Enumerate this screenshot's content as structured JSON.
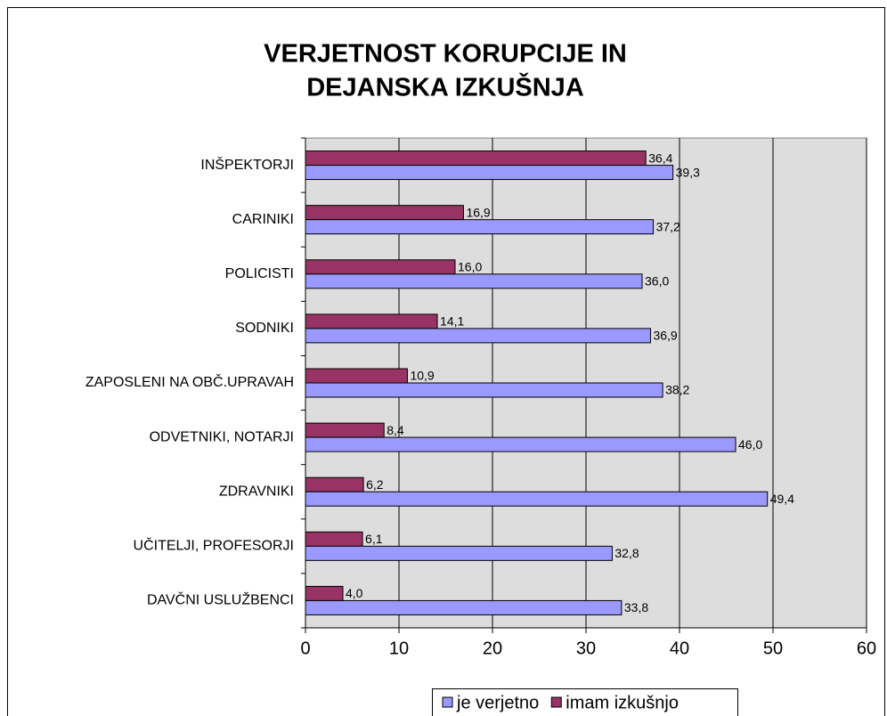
{
  "chart_data": {
    "type": "bar",
    "orientation": "horizontal",
    "title": [
      "VERJETNOST KORUPCIJE IN",
      "DEJANSKA IZKUŠNJA"
    ],
    "categories": [
      "INŠPEKTORJI",
      "CARINIKI",
      "POLICISTI",
      "SODNIKI",
      "ZAPOSLENI NA OBČ.UPRAVAH",
      "ODVETNIKI, NOTARJI",
      "ZDRAVNIKI",
      "UČITELJI, PROFESORJI",
      "DAVČNI USLUŽBENCI"
    ],
    "series": [
      {
        "name": "je verjetno",
        "color": "#9999ff",
        "values": [
          39.3,
          37.2,
          36.0,
          36.9,
          38.2,
          46.0,
          49.4,
          32.8,
          33.8
        ],
        "value_labels": [
          "39,3",
          "37,2",
          "36,0",
          "36,9",
          "38,2",
          "46,0",
          "49,4",
          "32,8",
          "33,8"
        ]
      },
      {
        "name": "imam izkušnjo",
        "color": "#993366",
        "values": [
          36.4,
          16.9,
          16.0,
          14.1,
          10.9,
          8.4,
          6.2,
          6.1,
          4.0
        ],
        "value_labels": [
          "36,4",
          "16,9",
          "16,0",
          "14,1",
          "10,9",
          "8,4",
          "6,2",
          "6,1",
          "4,0"
        ]
      }
    ],
    "xlim": [
      0,
      60
    ],
    "xticks": [
      0,
      10,
      20,
      30,
      40,
      50,
      60
    ],
    "grid": true,
    "plot_background": "#dddddd",
    "legend": "bottom"
  }
}
